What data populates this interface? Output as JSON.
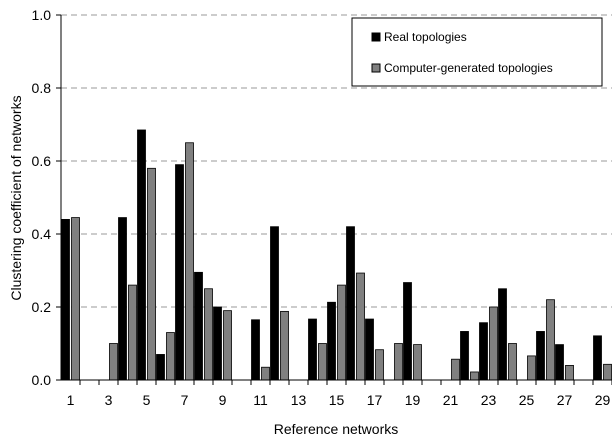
{
  "chart_data": {
    "type": "bar",
    "xlabel": "Reference networks",
    "ylabel": "Clustering coefficient of networks",
    "ylim": [
      0,
      1.0
    ],
    "yticks": [
      "0.0",
      "0.2",
      "0.4",
      "0.6",
      "0.8",
      "1.0"
    ],
    "grid": "horizontal dashed",
    "legend_position": "top-right",
    "categories": [
      "1",
      "2",
      "3",
      "4",
      "5",
      "6",
      "7",
      "8",
      "9",
      "10",
      "11",
      "12",
      "13",
      "14",
      "15",
      "16",
      "17",
      "18",
      "19",
      "20",
      "21",
      "22",
      "23",
      "24",
      "25",
      "26",
      "27",
      "28",
      "29"
    ],
    "xtick_labels": [
      "1",
      "",
      "3",
      "",
      "5",
      "",
      "7",
      "",
      "9",
      "",
      "11",
      "",
      "13",
      "",
      "15",
      "",
      "17",
      "",
      "19",
      "",
      "21",
      "",
      "23",
      "",
      "25",
      "",
      "27",
      "",
      "29"
    ],
    "series": [
      {
        "name": "Real topologies",
        "color": "#000000",
        "values": [
          0.44,
          0,
          0,
          0.445,
          0.685,
          0.07,
          0.59,
          0.295,
          0.2,
          0,
          0.165,
          0.42,
          0,
          0.167,
          0.213,
          0.42,
          0.167,
          0,
          0.267,
          0,
          0,
          0.133,
          0.157,
          0.25,
          0,
          0.133,
          0.097,
          0,
          0.121
        ]
      },
      {
        "name": "Computer-generated topologies",
        "color": "#808080",
        "values": [
          0.445,
          0,
          0.1,
          0.26,
          0.58,
          0.13,
          0.65,
          0.25,
          0.19,
          0,
          0.035,
          0.188,
          0,
          0.1,
          0.26,
          0.293,
          0.083,
          0.1,
          0.097,
          0,
          0.057,
          0.022,
          0.2,
          0.1,
          0.066,
          0.22,
          0.04,
          0,
          0.043
        ]
      }
    ]
  }
}
